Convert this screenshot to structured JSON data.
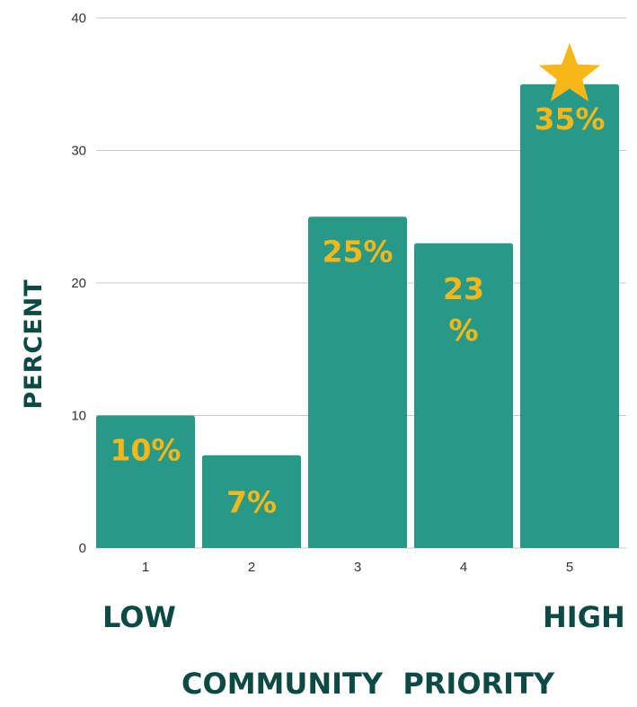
{
  "chart_data": {
    "type": "bar",
    "categories": [
      "1",
      "2",
      "3",
      "4",
      "5"
    ],
    "values": [
      10,
      7,
      25,
      23,
      35
    ],
    "data_labels": [
      "10%",
      "7%",
      "25%",
      "23\n%",
      "35%"
    ],
    "ylabel": "PERCENT",
    "xlabel": "COMMUNITY  PRIORITY",
    "ylim": [
      0,
      40
    ],
    "yticks": [
      0,
      10,
      20,
      30,
      40
    ],
    "grid": true,
    "highlight_category": "5",
    "highlight_icon": "star-icon",
    "low_label": "LOW",
    "high_label": "HIGH",
    "colors": {
      "bar": "#279a87",
      "label": "#f7b719",
      "star": "#f7b719",
      "text": "#0d4a44",
      "grid": "#c8c8c8"
    }
  }
}
